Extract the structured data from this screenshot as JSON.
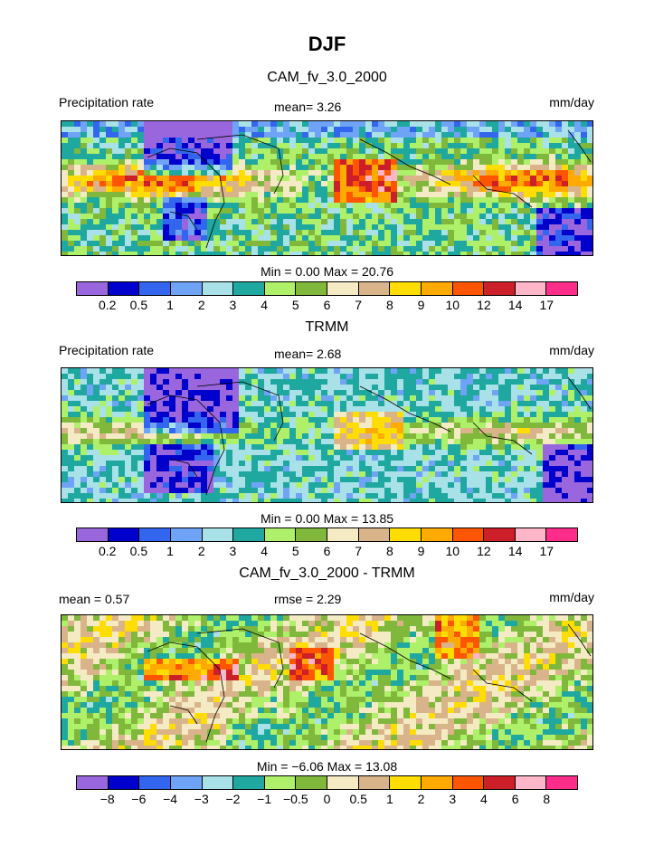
{
  "figure_title": "DJF",
  "panels": [
    {
      "subtitle": "CAM_fv_3.0_2000",
      "left_label": "Precipitation rate",
      "center_label": "mean=   3.26",
      "right_label": "mm/day",
      "minmax": "Min =    0.00  Max =   20.76"
    },
    {
      "subtitle": "TRMM",
      "left_label": "Precipitation rate",
      "center_label": "mean=   2.68",
      "right_label": "mm/day",
      "minmax": "Min =    0.00  Max =   13.85"
    },
    {
      "subtitle": "CAM_fv_3.0_2000 - TRMM",
      "left_label": "mean =   0.57",
      "center_label": "rmse =   2.29",
      "right_label": "mm/day",
      "minmax": "Min =   −6.06  Max =   13.08"
    }
  ],
  "chart_data": [
    {
      "type": "heatmap",
      "title": "CAM_fv_3.0_2000",
      "variable": "Precipitation rate",
      "units": "mm/day",
      "mean": 3.26,
      "min": 0.0,
      "max": 20.76,
      "levels": [
        0.2,
        0.5,
        1,
        2,
        3,
        4,
        5,
        6,
        7,
        8,
        9,
        10,
        12,
        14,
        17
      ],
      "level_labels": [
        "0.2",
        "0.5",
        "1",
        "2",
        "3",
        "4",
        "5",
        "6",
        "7",
        "8",
        "9",
        "10",
        "12",
        "14",
        "17"
      ],
      "colors": [
        "#9966dd",
        "#0000cc",
        "#3366ee",
        "#6fa3f5",
        "#a9e1e8",
        "#1fa8a0",
        "#aef06a",
        "#7fb83a",
        "#f4ebc4",
        "#d9b48a",
        "#ffdd00",
        "#ffaa00",
        "#ff5500",
        "#cc1f2a",
        "#ffb6c8",
        "#ff2d8a"
      ]
    },
    {
      "type": "heatmap",
      "title": "TRMM",
      "variable": "Precipitation rate",
      "units": "mm/day",
      "mean": 2.68,
      "min": 0.0,
      "max": 13.85,
      "levels": [
        0.2,
        0.5,
        1,
        2,
        3,
        4,
        5,
        6,
        7,
        8,
        9,
        10,
        12,
        14,
        17
      ],
      "level_labels": [
        "0.2",
        "0.5",
        "1",
        "2",
        "3",
        "4",
        "5",
        "6",
        "7",
        "8",
        "9",
        "10",
        "12",
        "14",
        "17"
      ],
      "colors": [
        "#9966dd",
        "#0000cc",
        "#3366ee",
        "#6fa3f5",
        "#a9e1e8",
        "#1fa8a0",
        "#aef06a",
        "#7fb83a",
        "#f4ebc4",
        "#d9b48a",
        "#ffdd00",
        "#ffaa00",
        "#ff5500",
        "#cc1f2a",
        "#ffb6c8",
        "#ff2d8a"
      ]
    },
    {
      "type": "heatmap",
      "title": "CAM_fv_3.0_2000 - TRMM",
      "units": "mm/day",
      "mean": 0.57,
      "rmse": 2.29,
      "min": -6.06,
      "max": 13.08,
      "levels": [
        -8,
        -6,
        -4,
        -3,
        -2,
        -1,
        -0.5,
        0,
        0.5,
        1,
        2,
        3,
        4,
        6,
        8
      ],
      "level_labels": [
        "−8",
        "−6",
        "−4",
        "−3",
        "−2",
        "−1",
        "−0.5",
        "0",
        "0.5",
        "1",
        "2",
        "3",
        "4",
        "6",
        "8"
      ],
      "colors": [
        "#9966dd",
        "#0000cc",
        "#3366ee",
        "#6fa3f5",
        "#a9e1e8",
        "#1fa8a0",
        "#aef06a",
        "#7fb83a",
        "#f4ebc4",
        "#d9b48a",
        "#ffdd00",
        "#ffaa00",
        "#ff5500",
        "#cc1f2a",
        "#ffb6c8",
        "#ff2d8a"
      ]
    }
  ]
}
